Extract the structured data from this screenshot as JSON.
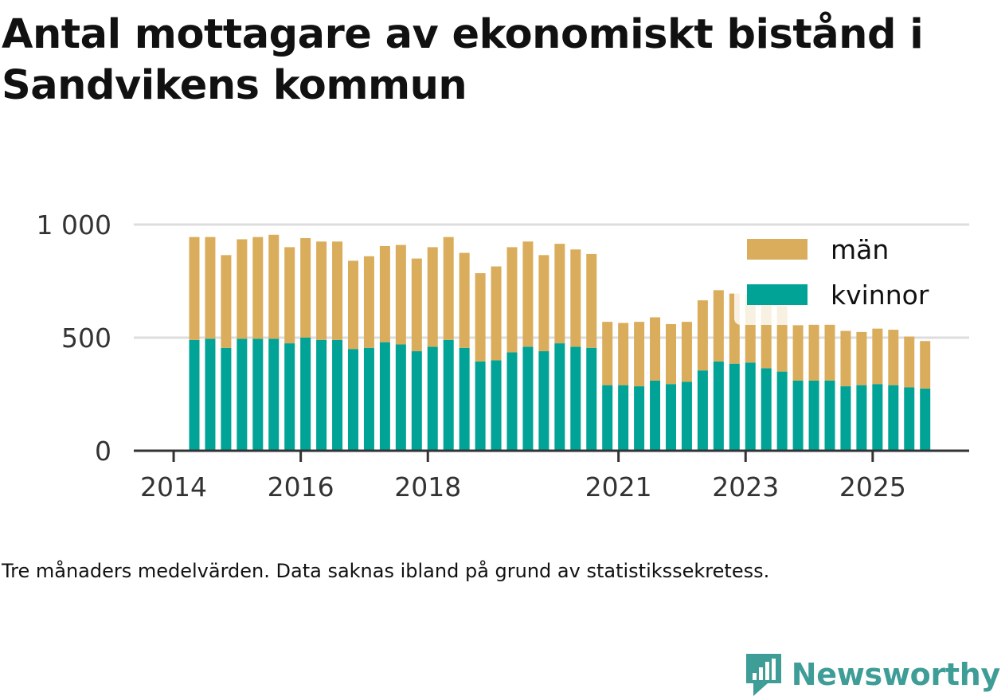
{
  "title": "Antal mottagare av ekonomiskt bistånd i Sandvikens kommun",
  "caption": "Tre månaders medelvärden. Data saknas ibland på grund av statistikssekretess.",
  "brand": "Newsworthy",
  "colors": {
    "man": "#d9ad5b",
    "kvinnor": "#00a396",
    "grid": "#dddddd",
    "axis": "#333333",
    "text": "#333333",
    "brand": "#3e9d96"
  },
  "chart_data": {
    "type": "bar",
    "stacked": true,
    "title": "Antal mottagare av ekonomiskt bistånd i Sandvikens kommun",
    "xlabel": "",
    "ylabel": "",
    "ylim": [
      0,
      1000
    ],
    "yticks": [
      0,
      500,
      1000
    ],
    "ytick_labels": [
      "0",
      "500",
      "1 000"
    ],
    "xtick_labels": [
      "2014",
      "2016",
      "2018",
      "2021",
      "2023",
      "2025"
    ],
    "xtick_index": [
      -1,
      7,
      15,
      27,
      35,
      43
    ],
    "grid": true,
    "legend_position": "top-right",
    "categories": [
      "2014-Q2",
      "2014-Q3",
      "2014-Q4",
      "2015-Q1",
      "2015-Q2",
      "2015-Q3",
      "2015-Q4",
      "2016-Q1",
      "2016-Q2",
      "2016-Q3",
      "2016-Q4",
      "2017-Q1",
      "2017-Q2",
      "2017-Q3",
      "2017-Q4",
      "2018-Q1",
      "2018-Q2",
      "2018-Q3",
      "2018-Q4",
      "2019-Q1",
      "2019-Q2",
      "2019-Q3",
      "2019-Q4",
      "2020-Q1",
      "2020-Q2",
      "2020-Q3",
      "2020-Q4",
      "2021-Q1",
      "2021-Q2",
      "2021-Q3",
      "2021-Q4",
      "2022-Q1",
      "2022-Q2",
      "2022-Q3",
      "2022-Q4",
      "2023-Q1",
      "2023-Q2",
      "2023-Q3",
      "2023-Q4",
      "2024-Q1",
      "2024-Q2",
      "2024-Q3",
      "2024-Q4",
      "2025-Q1",
      "2025-Q2",
      "2025-Q3",
      "2025-Q4"
    ],
    "series": [
      {
        "name": "kvinnor",
        "values": [
          490,
          495,
          455,
          495,
          495,
          495,
          475,
          500,
          490,
          490,
          450,
          455,
          480,
          470,
          440,
          460,
          490,
          455,
          395,
          400,
          435,
          460,
          440,
          475,
          460,
          455,
          290,
          290,
          285,
          310,
          295,
          305,
          355,
          395,
          385,
          390,
          365,
          350,
          310,
          310,
          310,
          285,
          290,
          295,
          290,
          280,
          275
        ]
      },
      {
        "name": "män",
        "values": [
          455,
          450,
          410,
          440,
          450,
          460,
          425,
          440,
          435,
          435,
          390,
          405,
          425,
          440,
          410,
          440,
          455,
          420,
          390,
          415,
          465,
          465,
          425,
          440,
          430,
          415,
          280,
          275,
          285,
          280,
          265,
          265,
          310,
          315,
          310,
          300,
          290,
          290,
          245,
          250,
          250,
          245,
          235,
          245,
          245,
          225,
          210
        ]
      }
    ]
  }
}
